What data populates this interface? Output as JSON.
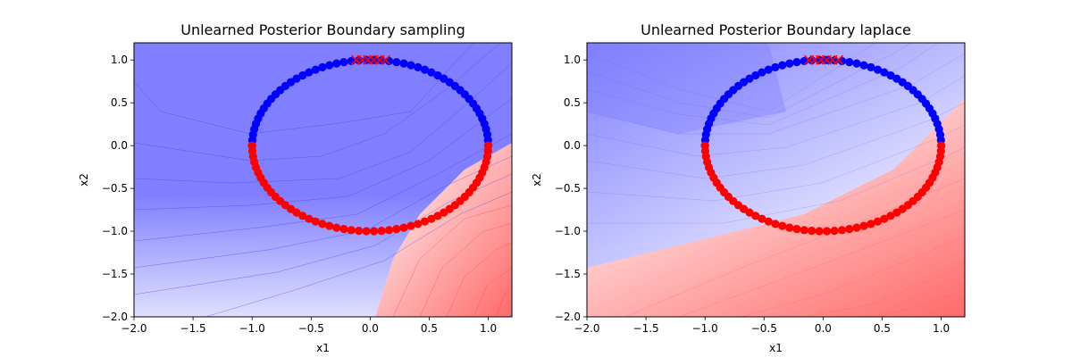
{
  "chart_data": [
    {
      "type": "scatter",
      "title": "Unlearned Posterior Boundary sampling",
      "xlabel": "x1",
      "ylabel": "x2",
      "xlim": [
        -2.0,
        1.2
      ],
      "ylim": [
        -2.0,
        1.2
      ],
      "xticks": [
        "−2.0",
        "−1.5",
        "−1.0",
        "−0.5",
        "0.0",
        "0.5",
        "1.0"
      ],
      "xtick_values": [
        -2.0,
        -1.5,
        -1.0,
        -0.5,
        0.0,
        0.5,
        1.0
      ],
      "yticks": [
        "−2.0",
        "−1.5",
        "−1.0",
        "−0.5",
        "0.0",
        "0.5",
        "1.0"
      ],
      "ytick_values": [
        -2.0,
        -1.5,
        -1.0,
        -0.5,
        0.0,
        0.5,
        1.0
      ],
      "background": "filled contour of posterior class probability (blue = class 0 / upper, red = class 1 / lower); boundary runs from about (-0.3,-2.0) up through (0.5,-0.3) to (1.2,0.0)",
      "boundary_line": {
        "x": [
          -0.3,
          0.3,
          0.7,
          1.2
        ],
        "y": [
          -2.0,
          -0.8,
          -0.35,
          -0.1
        ]
      },
      "series": [
        {
          "marker": "circle",
          "color": "#0000ff",
          "shape": "upper semicircle",
          "count": 50,
          "radius": 1.0,
          "angle_deg": [
            0,
            180
          ]
        },
        {
          "marker": "circle",
          "color": "#ff0000",
          "shape": "lower semicircle",
          "count": 50,
          "radius": 1.0,
          "angle_deg": [
            180,
            360
          ]
        },
        {
          "marker": "x",
          "color": "#ff0000",
          "x": [
            -0.12,
            -0.07,
            -0.02,
            0.03,
            0.08,
            0.13
          ],
          "y": [
            1.0,
            1.0,
            1.0,
            1.0,
            1.0,
            1.0
          ]
        }
      ],
      "colors": {
        "blue": "#7f7fff",
        "red": "#ff6666",
        "neutral": "#ffffff"
      }
    },
    {
      "type": "scatter",
      "title": "Unlearned Posterior Boundary laplace",
      "xlabel": "x1",
      "ylabel": "x2",
      "xlim": [
        -2.0,
        1.2
      ],
      "ylim": [
        -2.0,
        1.2
      ],
      "xticks": [
        "−2.0",
        "−1.5",
        "−1.0",
        "−0.5",
        "0.0",
        "0.5",
        "1.0"
      ],
      "xtick_values": [
        -2.0,
        -1.5,
        -1.0,
        -0.5,
        0.0,
        0.5,
        1.0
      ],
      "yticks": [
        "−2.0",
        "−1.5",
        "−1.0",
        "−0.5",
        "0.0",
        "0.5",
        "1.0"
      ],
      "ytick_values": [
        -2.0,
        -1.5,
        -1.0,
        -0.5,
        0.0,
        0.5,
        1.0
      ],
      "background": "filled contour of posterior class probability (blue = class 0 / upper-left, red = class 1 / lower-right); softer boundary running diagonally from about (-2.0,-1.2) to (1.2,0.5)",
      "boundary_line": {
        "x": [
          -2.0,
          -1.0,
          0.0,
          0.6,
          1.2
        ],
        "y": [
          -1.3,
          -1.0,
          -0.8,
          -0.3,
          0.4
        ]
      },
      "series": [
        {
          "marker": "circle",
          "color": "#0000ff",
          "shape": "upper semicircle",
          "count": 50,
          "radius": 1.0,
          "angle_deg": [
            0,
            180
          ]
        },
        {
          "marker": "circle",
          "color": "#ff0000",
          "shape": "lower semicircle",
          "count": 50,
          "radius": 1.0,
          "angle_deg": [
            180,
            360
          ]
        },
        {
          "marker": "x",
          "color": "#ff0000",
          "x": [
            -0.12,
            -0.07,
            -0.02,
            0.03,
            0.08,
            0.13
          ],
          "y": [
            1.0,
            1.0,
            1.0,
            1.0,
            1.0,
            1.0
          ]
        }
      ],
      "colors": {
        "blue": "#7f7fff",
        "red": "#ff6666",
        "neutral": "#ffffff"
      }
    }
  ]
}
